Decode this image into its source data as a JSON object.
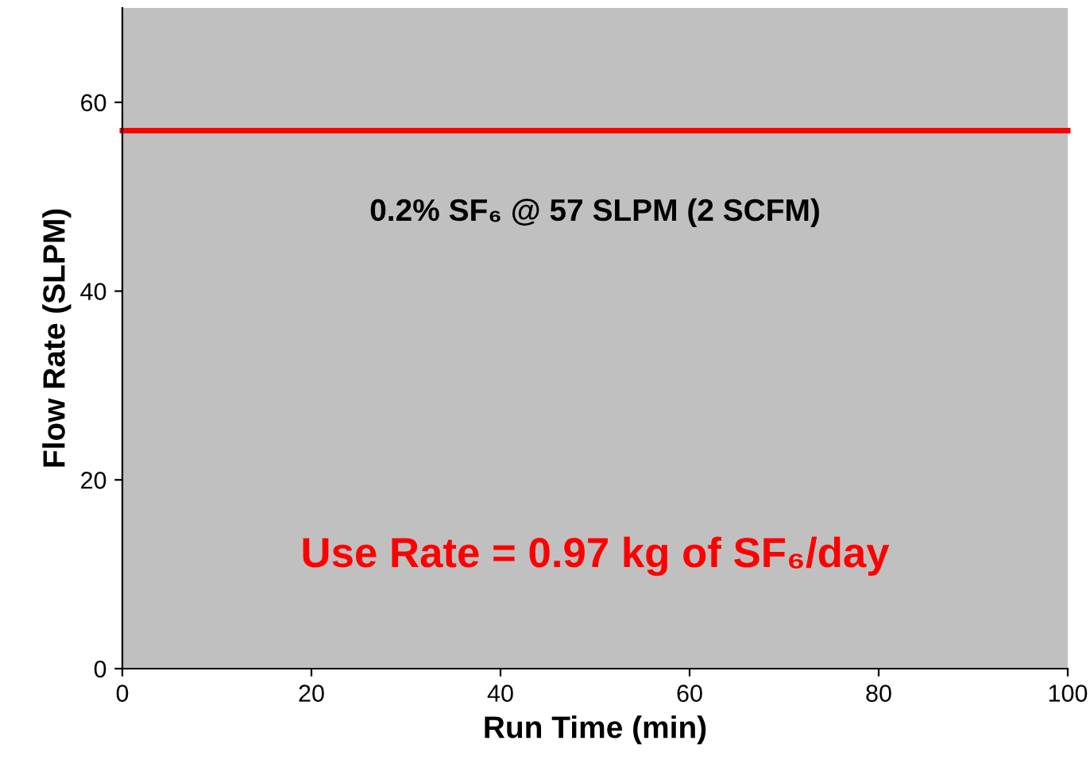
{
  "chart_data": {
    "type": "line",
    "xlabel": "Run Time (min)",
    "ylabel": "Flow Rate (SLPM)",
    "series": [
      {
        "color": "#ff0000",
        "x": [
          0,
          100
        ],
        "values": [
          57,
          57
        ]
      }
    ],
    "xlim": [
      0,
      100
    ],
    "xticks": [
      0,
      20,
      40,
      60,
      80,
      100
    ],
    "ylim": [
      0,
      70
    ],
    "yticks": [
      0,
      20,
      40,
      60
    ],
    "annotations": [
      "0.2% SF₆ @ 57 SLPM (2 SCFM)",
      "Use Rate = 0.97 kg of SF₆/day"
    ],
    "grid": false,
    "legend": false,
    "marker": "none",
    "line_style": "solid"
  }
}
